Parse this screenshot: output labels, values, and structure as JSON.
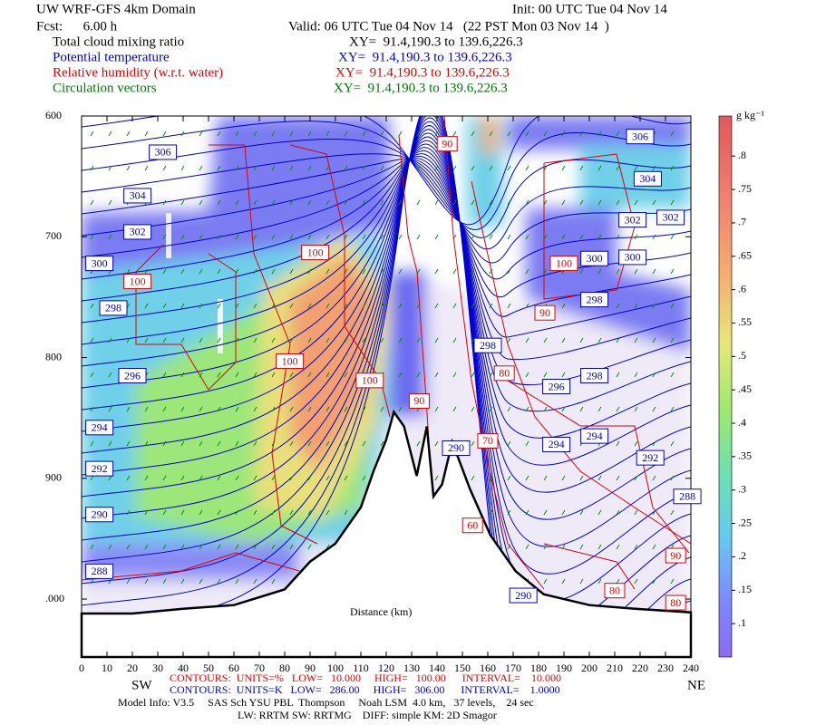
{
  "header": {
    "title": "UW WRF-GFS 4km Domain",
    "init": "Init: 00 UTC Tue 04 Nov 14",
    "fcst": "Fcst:      6.00 h",
    "valid": "Valid: 06 UTC Tue 04 Nov 14   (22 PST Mon 03 Nov 14  )",
    "fields": [
      {
        "name": "Total cloud mixing ratio",
        "xy": "XY=  91.4,190.3 to 139.6,226.3",
        "color": "#000000"
      },
      {
        "name": "Potential temperature",
        "xy": "XY=  91.4,190.3 to 139.6,226.3",
        "color": "#0000cc"
      },
      {
        "name": "Relative humidity (w.r.t. water)",
        "xy": "XY=  91.4,190.3 to 139.6,226.3",
        "color": "#dd0000"
      },
      {
        "name": "Circulation vectors",
        "xy": "XY=  91.4,190.3 to 139.6,226.3",
        "color": "#007700"
      }
    ]
  },
  "chart_data": {
    "type": "cross-section",
    "xlabel": "Distance (km)",
    "left_end": "SW",
    "right_end": "NE",
    "xlim": [
      0,
      240
    ],
    "xticks": [
      0,
      10,
      20,
      30,
      40,
      50,
      60,
      70,
      80,
      90,
      100,
      110,
      120,
      130,
      140,
      150,
      160,
      170,
      180,
      190,
      200,
      210,
      220,
      230,
      240
    ],
    "ylim": [
      600,
      1048
    ],
    "y_inverted": true,
    "yticks": [
      600,
      700,
      800,
      900,
      {
        "value": 1000,
        "label": ".000"
      }
    ],
    "surface_x": [
      0,
      20,
      40,
      60,
      80,
      90,
      100,
      110,
      115,
      120,
      123,
      127,
      132,
      136,
      138.6,
      142,
      146,
      153,
      161,
      171,
      182,
      200,
      218,
      240
    ],
    "surface_pressure": [
      1012,
      1012,
      1008,
      1005,
      992,
      969,
      954,
      924,
      894,
      868,
      845,
      857,
      898,
      857,
      915,
      905,
      870,
      909,
      947,
      977,
      996,
      1005,
      1008,
      1011
    ],
    "colorbar": {
      "unit": "g kg⁻¹",
      "clim": [
        0.05,
        0.86
      ],
      "ticks": [
        {
          "value": 0.1,
          "label": ".1"
        },
        {
          "value": 0.15,
          "label": ".15"
        },
        {
          "value": 0.2,
          "label": ".2"
        },
        {
          "value": 0.25,
          "label": ".25"
        },
        {
          "value": 0.3,
          "label": ".3"
        },
        {
          "value": 0.35,
          "label": ".35"
        },
        {
          "value": 0.4,
          "label": ".4"
        },
        {
          "value": 0.45,
          "label": ".45"
        },
        {
          "value": 0.5,
          "label": ".5"
        },
        {
          "value": 0.55,
          "label": ".55"
        },
        {
          "value": 0.6,
          "label": ".6"
        },
        {
          "value": 0.65,
          "label": ".65"
        },
        {
          "value": 0.7,
          "label": ".7"
        },
        {
          "value": 0.75,
          "label": ".75"
        },
        {
          "value": 0.8,
          "label": ".8"
        }
      ]
    },
    "theta_color": "#0000cc",
    "theta_labels": [
      {
        "x": 32,
        "y": 630,
        "value": 306
      },
      {
        "x": 22,
        "y": 666,
        "value": 304
      },
      {
        "x": 22,
        "y": 696,
        "value": 302
      },
      {
        "x": 7,
        "y": 722,
        "value": 300
      },
      {
        "x": 12.5,
        "y": 759,
        "value": 298
      },
      {
        "x": 20,
        "y": 815,
        "value": 296
      },
      {
        "x": 7,
        "y": 858,
        "value": 294
      },
      {
        "x": 7,
        "y": 892,
        "value": 292
      },
      {
        "x": 7,
        "y": 930,
        "value": 290
      },
      {
        "x": 7,
        "y": 977,
        "value": 288
      },
      {
        "x": 220,
        "y": 617,
        "value": 306
      },
      {
        "x": 223,
        "y": 652,
        "value": 304
      },
      {
        "x": 217,
        "y": 686,
        "value": 302
      },
      {
        "x": 232,
        "y": 684,
        "value": 302
      },
      {
        "x": 202,
        "y": 718,
        "value": 300
      },
      {
        "x": 217,
        "y": 717,
        "value": 300
      },
      {
        "x": 202,
        "y": 752,
        "value": 298
      },
      {
        "x": 160,
        "y": 790,
        "value": 298
      },
      {
        "x": 202,
        "y": 815,
        "value": 298
      },
      {
        "x": 187,
        "y": 824,
        "value": 296
      },
      {
        "x": 187,
        "y": 872,
        "value": 294
      },
      {
        "x": 202,
        "y": 865,
        "value": 294
      },
      {
        "x": 224,
        "y": 883,
        "value": 292
      },
      {
        "x": 238.6,
        "y": 915,
        "value": 288
      },
      {
        "x": 174,
        "y": 997,
        "value": 290
      },
      {
        "x": 147.5,
        "y": 875,
        "value": 290
      }
    ],
    "rh_color": "#dd0000",
    "rh_labels": [
      {
        "x": 22,
        "y": 737,
        "value": 100
      },
      {
        "x": 92,
        "y": 713,
        "value": 100
      },
      {
        "x": 82,
        "y": 803,
        "value": 100
      },
      {
        "x": 113.5,
        "y": 819,
        "value": 100
      },
      {
        "x": 144,
        "y": 623,
        "value": 90
      },
      {
        "x": 133,
        "y": 836,
        "value": 90
      },
      {
        "x": 182.5,
        "y": 763,
        "value": 90
      },
      {
        "x": 190,
        "y": 722,
        "value": 100
      },
      {
        "x": 166.5,
        "y": 813,
        "value": 80
      },
      {
        "x": 160,
        "y": 869,
        "value": 70
      },
      {
        "x": 154,
        "y": 939,
        "value": 60
      },
      {
        "x": 234,
        "y": 964,
        "value": 90
      },
      {
        "x": 210,
        "y": 993,
        "value": 80
      },
      {
        "x": 234,
        "y": 1003,
        "value": 80
      }
    ],
    "footer": {
      "rh_contours": "CONTOURS:  UNITS=%   LOW=   10.000     HIGH=   100.00      INTERVAL=    10.000",
      "theta_contours": "CONTOURS:  UNITS=K   LOW=   286.00     HIGH=   306.00      INTERVAL=    1.0000",
      "model_info": "Model Info: V3.5     SAS Sch YSU PBL  Thompson     Noah LSM  4.0 km,   37 levels,    24 sec",
      "physics": "LW: RRTM SW: RRTMG    DIFF: simple KM: 2D Smagor"
    }
  }
}
